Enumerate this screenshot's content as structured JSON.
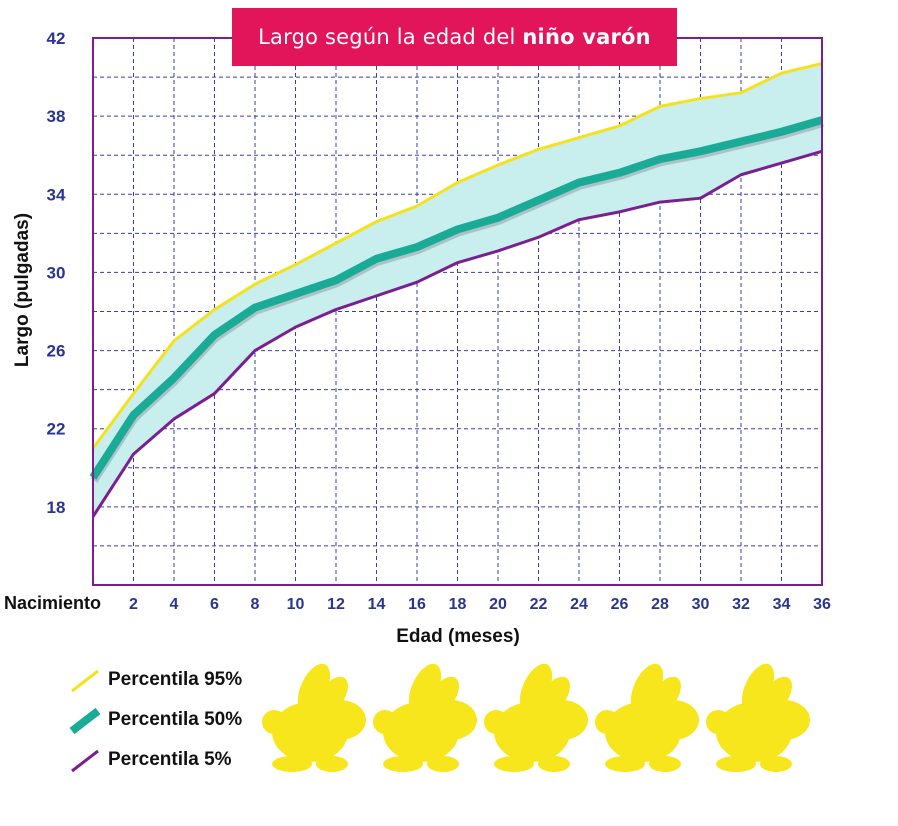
{
  "title": {
    "prefix": "Largo según la edad del",
    "highlight": "niño varón"
  },
  "colors": {
    "banner": "#e3155a",
    "grid_border": "#7a1f8f",
    "grid_dash": "#3a3fa8",
    "tick_label": "#2b3590",
    "p95": "#f5e21c",
    "p50": "#1aab96",
    "p5": "#7a1f8f",
    "band": "#c8eeee",
    "bunny": "#f7e61c"
  },
  "chart_data": {
    "type": "line",
    "title": "Largo según la edad del niño varón",
    "xlabel": "Edad (meses)",
    "ylabel": "Largo (pulgadas)",
    "x_start_label": "Nacimiento",
    "xlim": [
      0,
      36
    ],
    "ylim": [
      14,
      42
    ],
    "x_ticks": [
      2,
      4,
      6,
      8,
      10,
      12,
      14,
      16,
      18,
      20,
      22,
      24,
      26,
      28,
      30,
      32,
      34,
      36
    ],
    "y_ticks": [
      18,
      22,
      26,
      30,
      34,
      38,
      42
    ],
    "grid": true,
    "fill_between": [
      "Percentila 95%",
      "Percentila 5%"
    ],
    "x": [
      0,
      2,
      4,
      6,
      8,
      10,
      12,
      14,
      16,
      18,
      20,
      22,
      24,
      26,
      28,
      30,
      32,
      34,
      36
    ],
    "series": [
      {
        "name": "Percentila 95%",
        "color_key": "p95",
        "width": "thin",
        "values": [
          21.0,
          23.8,
          26.5,
          28.1,
          29.4,
          30.4,
          31.5,
          32.6,
          33.4,
          34.6,
          35.5,
          36.3,
          36.9,
          37.5,
          38.5,
          38.9,
          39.2,
          40.2,
          40.7
        ]
      },
      {
        "name": "Percentila 50%",
        "color_key": "p50",
        "width": "thick",
        "values": [
          19.5,
          22.7,
          24.6,
          26.8,
          28.2,
          28.9,
          29.6,
          30.7,
          31.3,
          32.2,
          32.8,
          33.7,
          34.6,
          35.1,
          35.8,
          36.2,
          36.7,
          37.2,
          37.8
        ]
      },
      {
        "name": "Percentila 5%",
        "color_key": "p5",
        "width": "thin",
        "values": [
          17.5,
          20.7,
          22.5,
          23.8,
          26.0,
          27.2,
          28.1,
          28.8,
          29.5,
          30.5,
          31.1,
          31.8,
          32.7,
          33.1,
          33.6,
          33.8,
          35.0,
          35.6,
          36.2
        ]
      }
    ],
    "legend": "bottom-left"
  },
  "decor": {
    "bunny_count": 5,
    "bunny_icon": "rabbit-silhouette-icon"
  }
}
